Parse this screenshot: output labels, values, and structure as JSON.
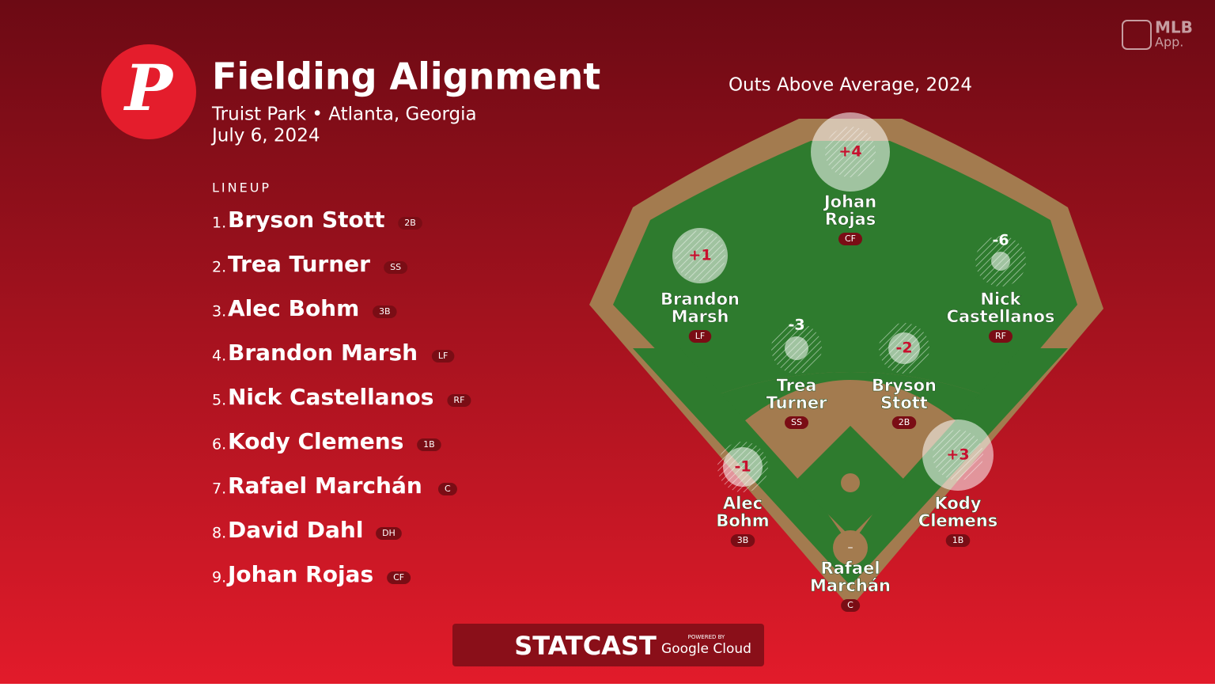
{
  "team_logo": "P",
  "app_badge": [
    "MLB",
    "App."
  ],
  "header": {
    "title": "Fielding Alignment",
    "subtitle": "Truist Park • Atlanta, Georgia",
    "date": "July 6, 2024"
  },
  "lineup": {
    "label": "LINEUP",
    "players": [
      {
        "number": "1.",
        "name": "Bryson Stott",
        "position": "2B"
      },
      {
        "number": "2.",
        "name": "Trea Turner",
        "position": "SS"
      },
      {
        "number": "3.",
        "name": "Alec Bohm",
        "position": "3B"
      },
      {
        "number": "4.",
        "name": "Brandon Marsh",
        "position": "LF"
      },
      {
        "number": "5.",
        "name": "Nick Castellanos",
        "position": "RF"
      },
      {
        "number": "6.",
        "name": "Kody Clemens",
        "position": "1B"
      },
      {
        "number": "7.",
        "name": "Rafael Marchán",
        "position": "C"
      },
      {
        "number": "8.",
        "name": "David Dahl",
        "position": "DH"
      },
      {
        "number": "9.",
        "name": "Johan Rojas",
        "position": "CF"
      }
    ]
  },
  "field": {
    "title": "Outs Above Average, 2024",
    "players": [
      {
        "name_lines": [
          "Johan",
          "Rojas"
        ],
        "position": "CF",
        "oaa": 4,
        "oaa_label": "+4"
      },
      {
        "name_lines": [
          "Brandon",
          "Marsh"
        ],
        "position": "LF",
        "oaa": 1,
        "oaa_label": "+1"
      },
      {
        "name_lines": [
          "Nick",
          "Castellanos"
        ],
        "position": "RF",
        "oaa": -6,
        "oaa_label": "-6"
      },
      {
        "name_lines": [
          "Trea",
          "Turner"
        ],
        "position": "SS",
        "oaa": -3,
        "oaa_label": "-3"
      },
      {
        "name_lines": [
          "Bryson",
          "Stott"
        ],
        "position": "2B",
        "oaa": -2,
        "oaa_label": "-2"
      },
      {
        "name_lines": [
          "Alec",
          "Bohm"
        ],
        "position": "3B",
        "oaa": -1,
        "oaa_label": "-1"
      },
      {
        "name_lines": [
          "Kody",
          "Clemens"
        ],
        "position": "1B",
        "oaa": 3,
        "oaa_label": "+3"
      },
      {
        "name_lines": [
          "Rafael",
          "Marchán"
        ],
        "position": "C",
        "oaa": null,
        "oaa_label": "–"
      }
    ]
  },
  "footer": {
    "brand": "STATCAST",
    "powered_by": "POWERED BY",
    "partner": "Google Cloud"
  }
}
